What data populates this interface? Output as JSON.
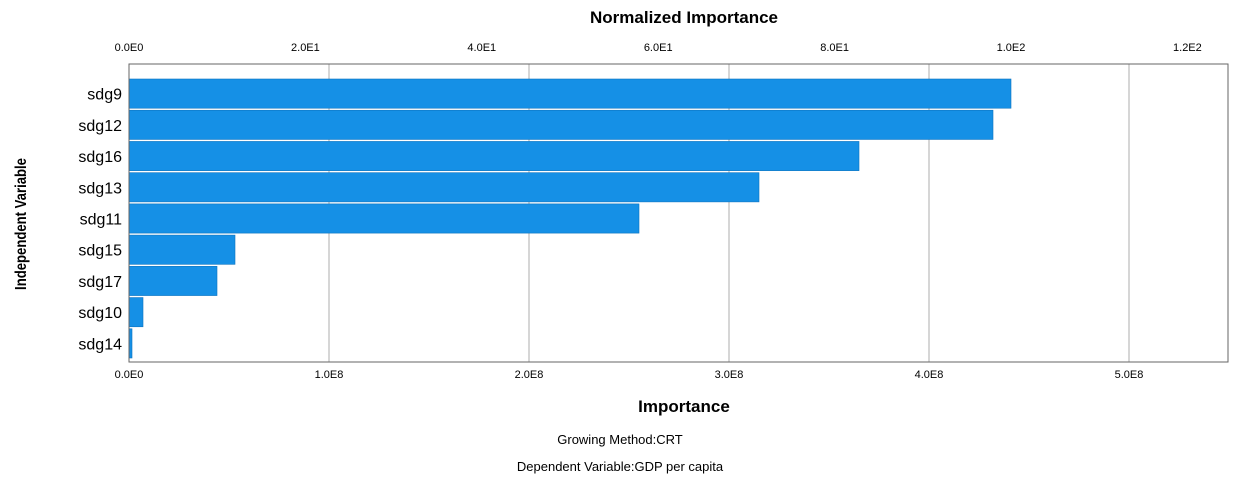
{
  "chart_data": {
    "type": "bar",
    "orientation": "horizontal",
    "top_axis_title": "Normalized Importance",
    "xlabel": "Importance",
    "ylabel": "Independent Variable",
    "categories": [
      "sdg9",
      "sdg12",
      "sdg16",
      "sdg13",
      "sdg11",
      "sdg15",
      "sdg17",
      "sdg10",
      "sdg14"
    ],
    "values": [
      441000000,
      432000000,
      365000000,
      315000000,
      255000000,
      53000000,
      44000000,
      7000000,
      1500000
    ],
    "xlim": [
      0,
      550000000
    ],
    "x_ticks": [
      {
        "value": 0,
        "label": "0.0E0"
      },
      {
        "value": 100000000,
        "label": "1.0E8"
      },
      {
        "value": 200000000,
        "label": "2.0E8"
      },
      {
        "value": 300000000,
        "label": "3.0E8"
      },
      {
        "value": 400000000,
        "label": "4.0E8"
      },
      {
        "value": 500000000,
        "label": "5.0E8"
      }
    ],
    "top_ticks": [
      {
        "value": 0,
        "label": "0.0E0"
      },
      {
        "value": 20,
        "label": "2.0E1"
      },
      {
        "value": 40,
        "label": "4.0E1"
      },
      {
        "value": 60,
        "label": "6.0E1"
      },
      {
        "value": 80,
        "label": "8.0E1"
      },
      {
        "value": 100,
        "label": "1.0E2"
      },
      {
        "value": 120,
        "label": "1.2E2"
      }
    ],
    "top_max_value": 441000000,
    "grid": true,
    "bar_color": "#1590e6",
    "footnotes": [
      "Growing Method:CRT",
      "Dependent Variable:GDP per capita"
    ]
  }
}
